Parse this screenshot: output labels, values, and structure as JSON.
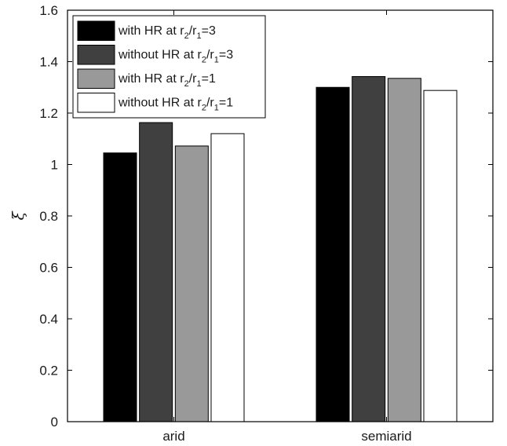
{
  "chart_data": {
    "type": "bar",
    "categories": [
      "arid",
      "semiarid"
    ],
    "series": [
      {
        "name": "with HR at r2/r1=3",
        "legend": {
          "pre": "with HR at r",
          "s1": "2",
          "mid": "/r",
          "s2": "1",
          "post": "=3"
        },
        "color": "#000000",
        "values": [
          1.045,
          1.3
        ]
      },
      {
        "name": "without HR at r2/r1=3",
        "legend": {
          "pre": "without HR at r",
          "s1": "2",
          "mid": "/r",
          "s2": "1",
          "post": "=3"
        },
        "color": "#404040",
        "values": [
          1.163,
          1.342
        ]
      },
      {
        "name": "with HR at r2/r1=1",
        "legend": {
          "pre": "with HR at r",
          "s1": "2",
          "mid": "/r",
          "s2": "1",
          "post": "=1"
        },
        "color": "#999999",
        "values": [
          1.072,
          1.335
        ]
      },
      {
        "name": "without HR at r2/r1=1",
        "legend": {
          "pre": "without HR at r",
          "s1": "2",
          "mid": "/r",
          "s2": "1",
          "post": "=1"
        },
        "color": "#ffffff",
        "values": [
          1.12,
          1.288
        ]
      }
    ],
    "ylabel": "ξ",
    "xlabel": "",
    "ylim": [
      0,
      1.6
    ],
    "yticks": [
      "0",
      "0.2",
      "0.4",
      "0.6",
      "0.8",
      "1",
      "1.2",
      "1.4",
      "1.6"
    ],
    "legend_position": "top-left",
    "grid": false
  }
}
